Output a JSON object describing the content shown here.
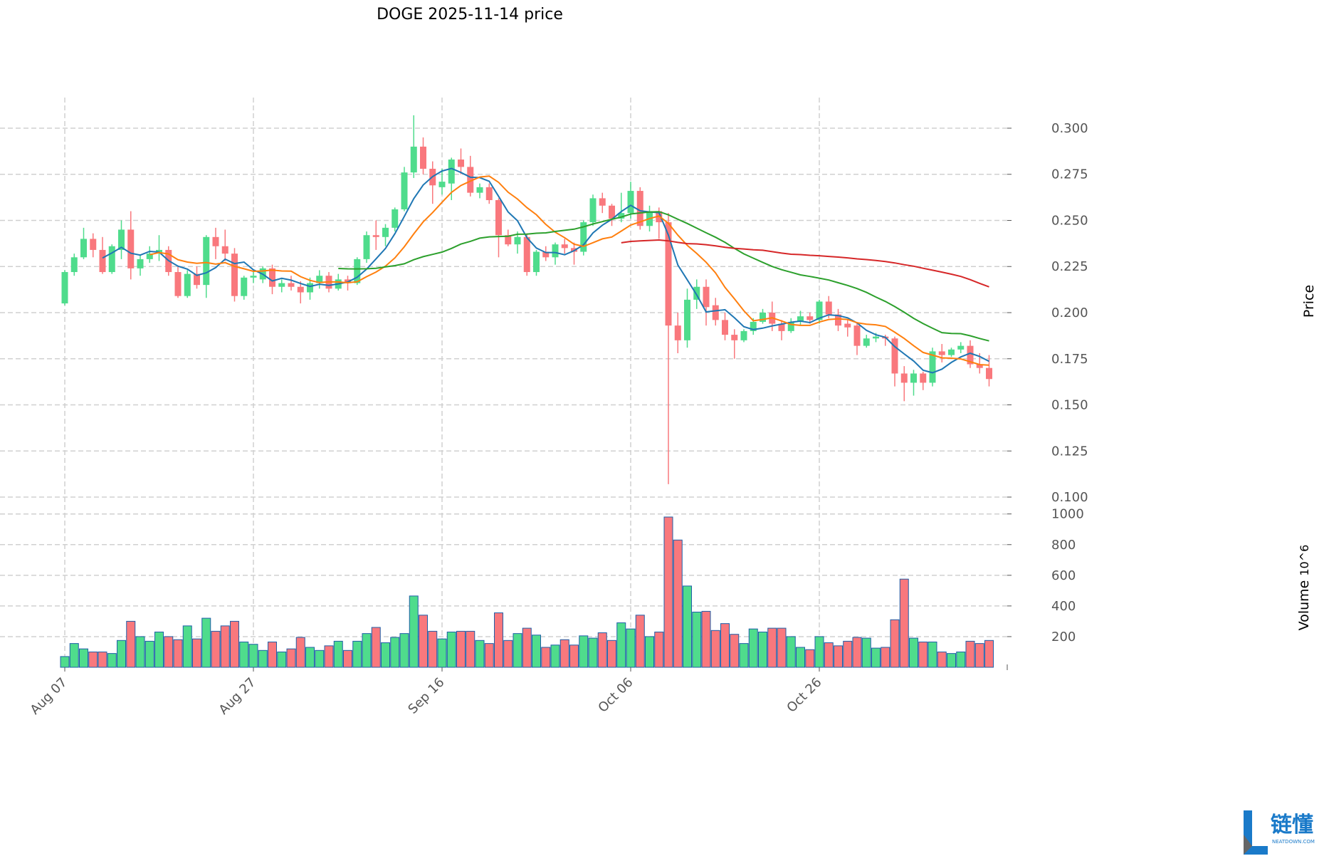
{
  "title": "DOGE  2025-11-14  price",
  "chart_data": {
    "type": "candlestick",
    "title": "DOGE  2025-11-14  price",
    "ylabel": "Price",
    "volume_label": "Volume",
    "volume_unit": "10^6",
    "volume_unit_base": "10",
    "volume_unit_exp": "6",
    "start_date": "2025-08-07",
    "x_tick_labels": [
      "Aug 07",
      "Aug 27",
      "Sep 16",
      "Oct 06",
      "Oct 26"
    ],
    "x_tick_day_index": [
      0,
      20,
      40,
      60,
      80
    ],
    "price_ticks": [
      "0.100",
      "0.125",
      "0.150",
      "0.175",
      "0.200",
      "0.225",
      "0.250",
      "0.275",
      "0.300"
    ],
    "price_ylim": [
      0.0973,
      0.3166
    ],
    "volume_ticks": [
      "200",
      "400",
      "600",
      "800",
      "1000"
    ],
    "volume_ylim": [
      0,
      1045
    ],
    "moving_averages": [
      {
        "window": 5,
        "color": "#1f77b4"
      },
      {
        "window": 10,
        "color": "#ff7f0e"
      },
      {
        "window": 30,
        "color": "#2ca02c"
      },
      {
        "window": 60,
        "color": "#d62728"
      }
    ],
    "up_color": "#4fdc8c",
    "down_color": "#f9787d",
    "grid": true,
    "open": [
      0.205,
      0.222,
      0.23,
      0.24,
      0.234,
      0.222,
      0.234,
      0.245,
      0.224,
      0.229,
      0.232,
      0.234,
      0.222,
      0.209,
      0.221,
      0.215,
      0.241,
      0.236,
      0.232,
      0.209,
      0.219,
      0.218,
      0.224,
      0.214,
      0.216,
      0.214,
      0.211,
      0.216,
      0.22,
      0.213,
      0.218,
      0.216,
      0.229,
      0.242,
      0.241,
      0.246,
      0.256,
      0.276,
      0.29,
      0.278,
      0.268,
      0.27,
      0.283,
      0.279,
      0.265,
      0.268,
      0.261,
      0.242,
      0.237,
      0.241,
      0.222,
      0.233,
      0.23,
      0.237,
      0.235,
      0.233,
      0.249,
      0.262,
      0.258,
      0.251,
      0.254,
      0.266,
      0.247,
      0.255,
      0.249,
      0.193,
      0.185,
      0.207,
      0.214,
      0.204,
      0.196,
      0.188,
      0.185,
      0.19,
      0.195,
      0.2,
      0.194,
      0.19,
      0.195,
      0.198,
      0.196,
      0.206,
      0.199,
      0.194,
      0.193,
      0.182,
      0.186,
      0.187,
      0.186,
      0.167,
      0.162,
      0.167,
      0.162,
      0.179,
      0.177,
      0.18,
      0.182,
      0.172,
      0.17
    ],
    "high": [
      0.223,
      0.232,
      0.246,
      0.243,
      0.241,
      0.237,
      0.25,
      0.255,
      0.231,
      0.236,
      0.242,
      0.236,
      0.225,
      0.223,
      0.225,
      0.242,
      0.246,
      0.245,
      0.235,
      0.22,
      0.223,
      0.225,
      0.226,
      0.218,
      0.22,
      0.217,
      0.219,
      0.223,
      0.222,
      0.221,
      0.22,
      0.23,
      0.244,
      0.25,
      0.248,
      0.257,
      0.279,
      0.307,
      0.295,
      0.282,
      0.278,
      0.284,
      0.289,
      0.285,
      0.27,
      0.27,
      0.262,
      0.245,
      0.244,
      0.243,
      0.234,
      0.236,
      0.238,
      0.24,
      0.238,
      0.25,
      0.264,
      0.265,
      0.259,
      0.265,
      0.271,
      0.268,
      0.258,
      0.257,
      0.254,
      0.2,
      0.213,
      0.218,
      0.218,
      0.208,
      0.2,
      0.191,
      0.191,
      0.197,
      0.202,
      0.206,
      0.196,
      0.197,
      0.201,
      0.2,
      0.207,
      0.209,
      0.202,
      0.196,
      0.195,
      0.188,
      0.189,
      0.188,
      0.187,
      0.171,
      0.169,
      0.168,
      0.181,
      0.183,
      0.181,
      0.184,
      0.185,
      0.178,
      0.177
    ],
    "low": [
      0.204,
      0.22,
      0.229,
      0.23,
      0.221,
      0.221,
      0.229,
      0.218,
      0.22,
      0.227,
      0.228,
      0.22,
      0.208,
      0.208,
      0.213,
      0.208,
      0.229,
      0.228,
      0.206,
      0.207,
      0.216,
      0.216,
      0.21,
      0.211,
      0.212,
      0.205,
      0.207,
      0.213,
      0.211,
      0.212,
      0.212,
      0.215,
      0.227,
      0.234,
      0.236,
      0.244,
      0.255,
      0.273,
      0.275,
      0.259,
      0.264,
      0.261,
      0.275,
      0.263,
      0.262,
      0.259,
      0.23,
      0.236,
      0.232,
      0.22,
      0.22,
      0.228,
      0.226,
      0.232,
      0.226,
      0.231,
      0.247,
      0.254,
      0.247,
      0.249,
      0.251,
      0.245,
      0.244,
      0.24,
      0.107,
      0.178,
      0.181,
      0.202,
      0.193,
      0.193,
      0.185,
      0.175,
      0.184,
      0.188,
      0.194,
      0.19,
      0.185,
      0.189,
      0.193,
      0.194,
      0.194,
      0.197,
      0.19,
      0.187,
      0.177,
      0.181,
      0.184,
      0.182,
      0.16,
      0.152,
      0.155,
      0.158,
      0.16,
      0.173,
      0.176,
      0.178,
      0.17,
      0.167,
      0.16
    ],
    "close": [
      0.222,
      0.23,
      0.24,
      0.234,
      0.222,
      0.236,
      0.245,
      0.224,
      0.229,
      0.232,
      0.234,
      0.222,
      0.209,
      0.221,
      0.215,
      0.241,
      0.236,
      0.232,
      0.209,
      0.219,
      0.22,
      0.224,
      0.214,
      0.216,
      0.214,
      0.211,
      0.216,
      0.22,
      0.213,
      0.218,
      0.216,
      0.229,
      0.242,
      0.241,
      0.246,
      0.256,
      0.276,
      0.29,
      0.278,
      0.269,
      0.271,
      0.283,
      0.279,
      0.265,
      0.268,
      0.261,
      0.242,
      0.237,
      0.241,
      0.222,
      0.233,
      0.23,
      0.237,
      0.235,
      0.233,
      0.249,
      0.262,
      0.258,
      0.251,
      0.254,
      0.266,
      0.247,
      0.255,
      0.249,
      0.193,
      0.185,
      0.207,
      0.214,
      0.203,
      0.196,
      0.188,
      0.185,
      0.19,
      0.195,
      0.2,
      0.194,
      0.19,
      0.195,
      0.198,
      0.196,
      0.206,
      0.199,
      0.193,
      0.192,
      0.182,
      0.186,
      0.187,
      0.186,
      0.167,
      0.162,
      0.167,
      0.162,
      0.179,
      0.177,
      0.18,
      0.182,
      0.172,
      0.17,
      0.164
    ],
    "volume": [
      70,
      155,
      120,
      100,
      100,
      90,
      175,
      300,
      200,
      170,
      230,
      200,
      180,
      270,
      185,
      320,
      235,
      270,
      300,
      165,
      150,
      110,
      165,
      100,
      120,
      195,
      130,
      110,
      140,
      170,
      110,
      170,
      220,
      260,
      160,
      195,
      220,
      465,
      340,
      235,
      185,
      230,
      235,
      235,
      175,
      155,
      355,
      175,
      220,
      255,
      210,
      130,
      145,
      180,
      145,
      205,
      190,
      225,
      175,
      290,
      250,
      340,
      200,
      230,
      980,
      830,
      530,
      360,
      365,
      240,
      285,
      215,
      155,
      250,
      230,
      255,
      255,
      200,
      130,
      115,
      200,
      160,
      140,
      170,
      195,
      190,
      125,
      130,
      310,
      575,
      190,
      165,
      165,
      100,
      90,
      100,
      170,
      155,
      175
    ]
  },
  "logo": {
    "text": "链懂",
    "subtext": "NEATDOWN.COM",
    "color": "#1a7ac9"
  }
}
